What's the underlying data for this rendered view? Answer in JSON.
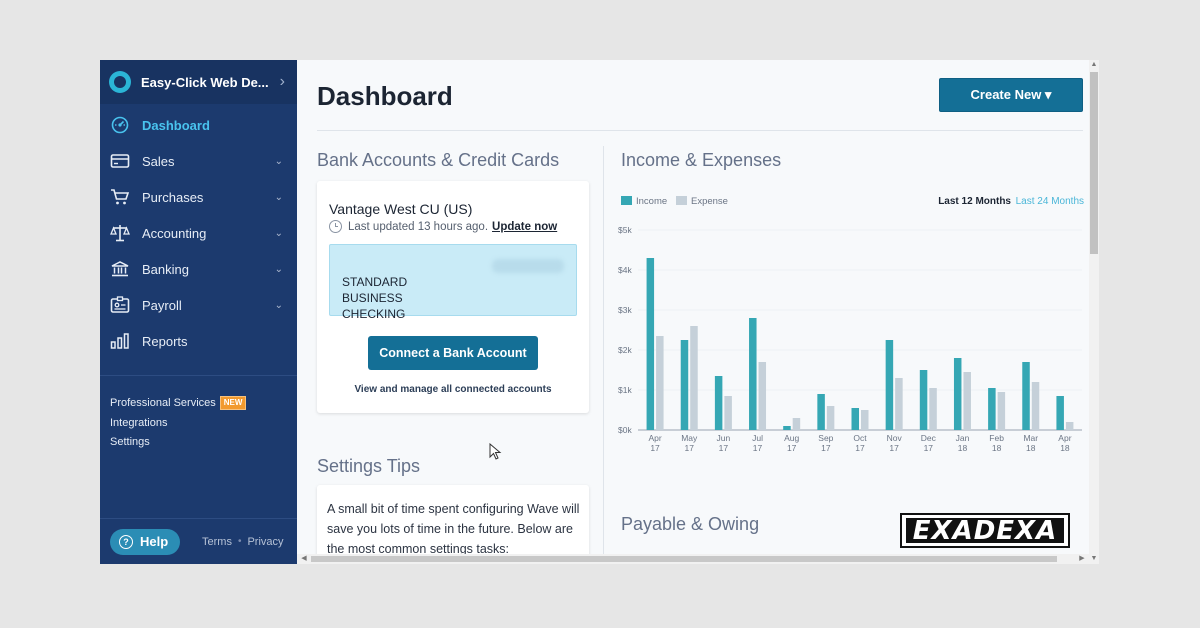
{
  "sidebar": {
    "business_name": "Easy-Click Web De...",
    "items": [
      {
        "label": "Dashboard",
        "icon": "dashboard-gauge-icon",
        "active": true
      },
      {
        "label": "Sales",
        "icon": "credit-card-icon"
      },
      {
        "label": "Purchases",
        "icon": "cart-icon"
      },
      {
        "label": "Accounting",
        "icon": "scale-icon"
      },
      {
        "label": "Banking",
        "icon": "bank-icon"
      },
      {
        "label": "Payroll",
        "icon": "id-badge-icon"
      },
      {
        "label": "Reports",
        "icon": "bar-chart-icon"
      }
    ],
    "links": {
      "professional_services": "Professional Services",
      "new_badge": "NEW",
      "integrations": "Integrations",
      "settings": "Settings"
    },
    "footer": {
      "help": "Help",
      "terms": "Terms",
      "dot": "•",
      "privacy": "Privacy"
    }
  },
  "header": {
    "title": "Dashboard",
    "create_new": "Create New ▾"
  },
  "bank": {
    "section_title": "Bank Accounts & Credit Cards",
    "bank_name": "Vantage West CU (US)",
    "last_updated": "Last updated 13 hours ago.",
    "update_now": "Update now",
    "account_type": "STANDARD\nBUSINESS\nCHECKING",
    "connect_button": "Connect a Bank Account",
    "view_link": "View and manage all connected accounts"
  },
  "tips": {
    "section_title": "Settings Tips",
    "text": "A small bit of time spent configuring Wave will save you lots of time in the future. Below are the most common settings tasks:"
  },
  "income": {
    "section_title": "Income & Expenses",
    "range_selected": "Last 12 Months",
    "range_other": "Last 24 Months"
  },
  "payable": {
    "section_title": "Payable & Owing"
  },
  "watermark": "EXADEXA",
  "colors": {
    "income": "#35a7b4",
    "expense": "#c5d0d9",
    "brand_blue": "#146f96",
    "sidebar": "#1c3a6e"
  },
  "chart_data": {
    "type": "bar",
    "title": "",
    "xlabel": "",
    "ylabel": "",
    "ylim": [
      0,
      5000
    ],
    "yticks": [
      "$0k",
      "$1k",
      "$2k",
      "$3k",
      "$4k",
      "$5k"
    ],
    "legend": [
      "Income",
      "Expense"
    ],
    "legend_position": "top-left",
    "categories": [
      [
        "Apr",
        "17"
      ],
      [
        "May",
        "17"
      ],
      [
        "Jun",
        "17"
      ],
      [
        "Jul",
        "17"
      ],
      [
        "Aug",
        "17"
      ],
      [
        "Sep",
        "17"
      ],
      [
        "Oct",
        "17"
      ],
      [
        "Nov",
        "17"
      ],
      [
        "Dec",
        "17"
      ],
      [
        "Jan",
        "18"
      ],
      [
        "Feb",
        "18"
      ],
      [
        "Mar",
        "18"
      ],
      [
        "Apr",
        "18"
      ]
    ],
    "series": [
      {
        "name": "Income",
        "values": [
          4300,
          2250,
          1350,
          2800,
          100,
          900,
          550,
          2250,
          1500,
          1800,
          1050,
          1700,
          850
        ]
      },
      {
        "name": "Expense",
        "values": [
          2350,
          2600,
          850,
          1700,
          300,
          600,
          500,
          1300,
          1050,
          1450,
          950,
          1200,
          200
        ]
      }
    ]
  }
}
